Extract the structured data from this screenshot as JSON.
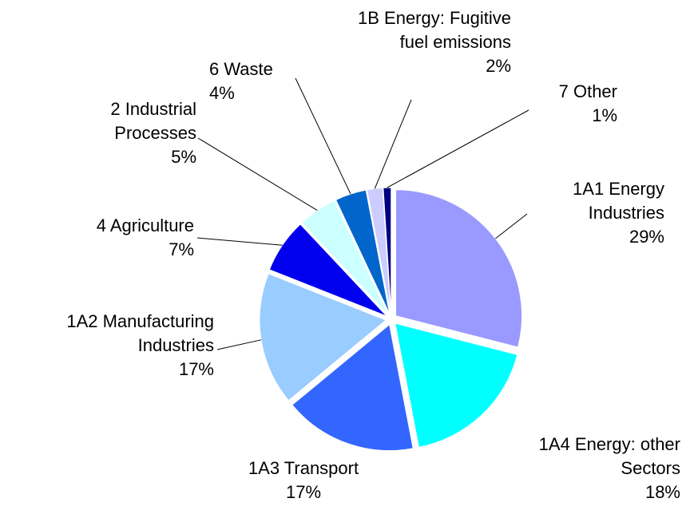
{
  "chart_data": {
    "type": "pie",
    "categories": [
      "1A1  Energy\nIndustries",
      "1A4  Energy: other\nSectors",
      "1A3  Transport",
      "1A2 Manufacturing\nIndustries",
      "4 Agriculture",
      "2 Industrial\nProcesses",
      "6 Waste",
      "1B Energy: Fugitive\nfuel emissions",
      "7 Other"
    ],
    "values": [
      29,
      18,
      17,
      17,
      7,
      5,
      4,
      2,
      1
    ],
    "value_labels": [
      "29%",
      "18%",
      "17%",
      "17%",
      "7%",
      "5%",
      "4%",
      "2%",
      "1%"
    ],
    "colors": [
      "#9999ff",
      "#00ffff",
      "#3366ff",
      "#99ccff",
      "#0000ee",
      "#ccffff",
      "#0066cc",
      "#ccccff",
      "#000080"
    ]
  }
}
